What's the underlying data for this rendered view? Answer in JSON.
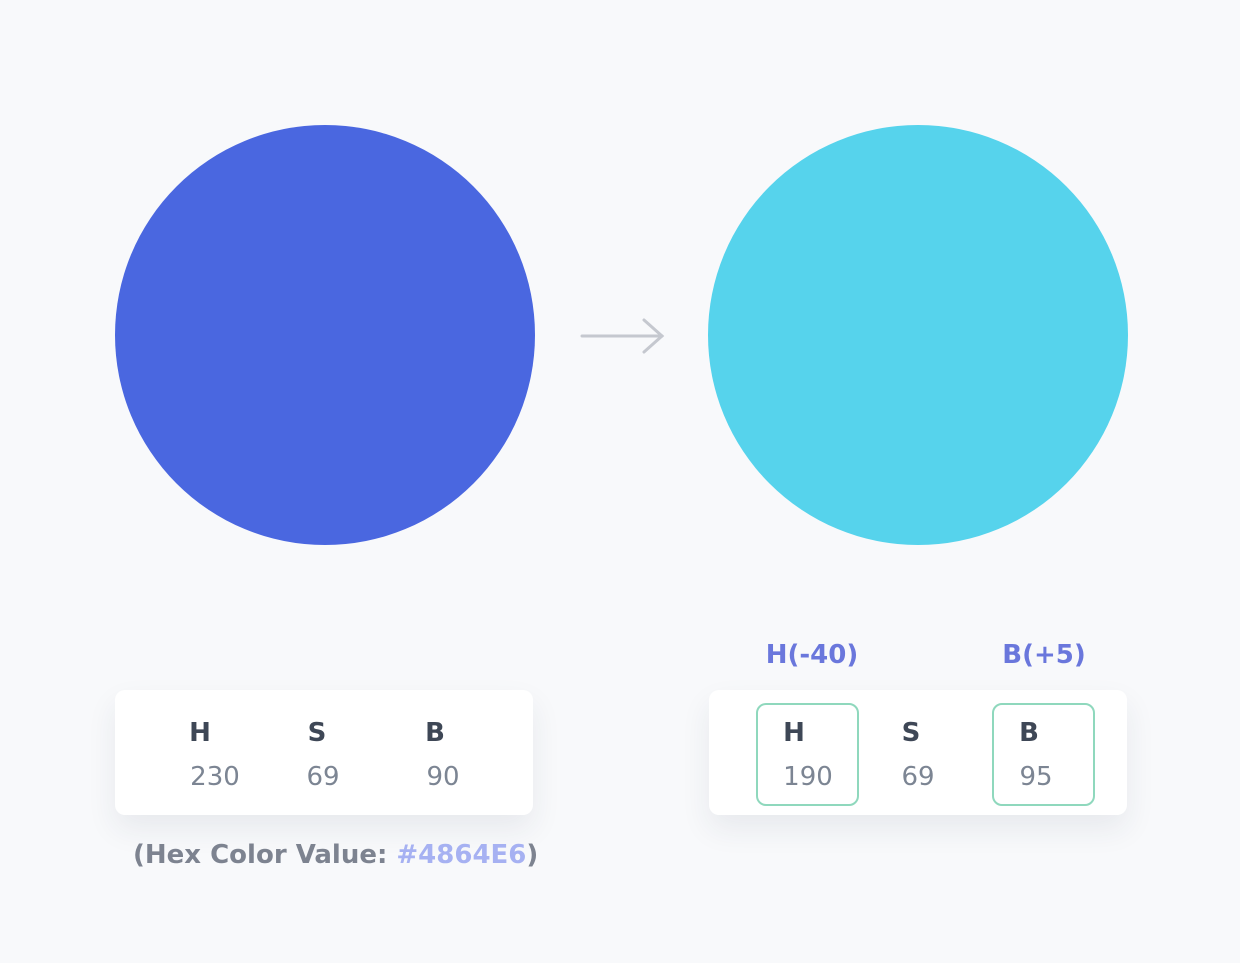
{
  "left": {
    "labels": [
      "H",
      "S",
      "B"
    ],
    "values": [
      230,
      69,
      90
    ],
    "note": {
      "prefix": "(Hex Color Value:",
      "hex": "#4864E6",
      "suffix": ")"
    }
  },
  "right": {
    "changes": [
      "H(-40)",
      "B(+5)"
    ],
    "labels": [
      "H",
      "S",
      "B"
    ],
    "values": [
      190,
      69,
      95
    ]
  }
}
